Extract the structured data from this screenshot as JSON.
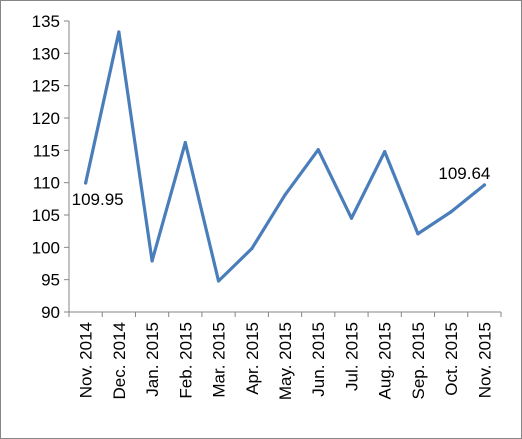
{
  "chart_data": {
    "type": "line",
    "title": "",
    "xlabel": "",
    "ylabel": "",
    "categories": [
      "Nov. 2014",
      "Dec. 2014",
      "Jan. 2015",
      "Feb. 2015",
      "Mar. 2015",
      "Apr. 2015",
      "May. 2015",
      "Jun. 2015",
      "Jul. 2015",
      "Aug. 2015",
      "Sep. 2015",
      "Oct. 2015",
      "Nov. 2015"
    ],
    "series": [
      {
        "values": [
          109.95,
          133.3,
          97.9,
          116.2,
          94.8,
          99.8,
          108.1,
          115.1,
          104.5,
          114.8,
          102.1,
          105.5,
          109.64
        ],
        "color": "#4a7ebb"
      }
    ],
    "ylim": [
      90,
      135
    ],
    "yticks": [
      90,
      95,
      100,
      105,
      110,
      115,
      120,
      125,
      130,
      135
    ],
    "ytick_labels": [
      "90",
      "95",
      "100",
      "105",
      "110",
      "115",
      "120",
      "125",
      "130",
      "135"
    ],
    "data_labels": [
      {
        "index": 0,
        "text": "109.95"
      },
      {
        "index": 12,
        "text": "109.64"
      }
    ],
    "grid": false,
    "legend": "none"
  }
}
